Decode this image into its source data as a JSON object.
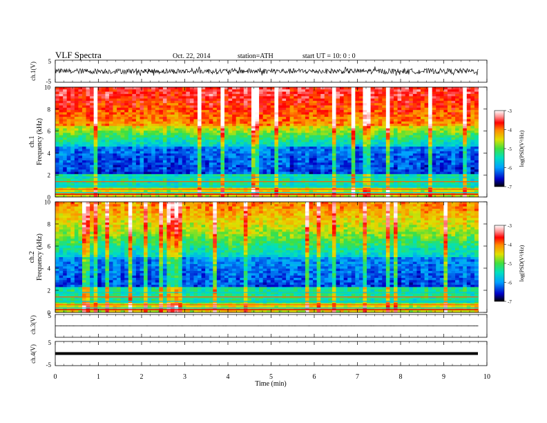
{
  "header": {
    "title": "VLF  Spectra",
    "date": "Oct. 22, 2014",
    "station": "station=ATH",
    "start": "start  UT  =   10: 0  : 0"
  },
  "colorbar": {
    "label": "log(PSD(V²/Hz)",
    "ticks": [
      "-3",
      "-4",
      "-5",
      "-6",
      "-7"
    ]
  },
  "chart_data": [
    {
      "type": "line",
      "name": "ch1-waveform",
      "ylabel": "ch.1(V)",
      "ylim": [
        -5,
        5
      ],
      "yticks": [
        "5",
        "-5"
      ],
      "xlim": [
        0,
        10
      ],
      "envelope_v": [
        -1.2,
        1.2
      ],
      "color": "#000000"
    },
    {
      "type": "heatmap",
      "name": "ch1-spectrogram",
      "ylabel": "ch.1\nFrequency  (kHz)",
      "ylabel_line1": "ch.1",
      "ylabel_line2": "Frequency  (kHz)",
      "ylim": [
        0,
        10
      ],
      "yticks": [
        "0",
        "2",
        "4",
        "6",
        "8",
        "10"
      ],
      "xlim": [
        0,
        9.8
      ],
      "zlim": [
        -7,
        -3
      ],
      "zlabel": "log(PSD(V²/Hz)"
    },
    {
      "type": "heatmap",
      "name": "ch2-spectrogram",
      "ylabel_line1": "ch.2",
      "ylabel_line2": "Frequency  (kHz)",
      "ylim": [
        0,
        10
      ],
      "yticks": [
        "0",
        "2",
        "4",
        "6",
        "8",
        "10"
      ],
      "xlim": [
        0,
        9.8
      ],
      "zlim": [
        -7,
        -3
      ],
      "zlabel": "log(PSD(V²/Hz)"
    },
    {
      "type": "line",
      "name": "ch3-waveform",
      "ylabel": "ch.3(V)",
      "ylim": [
        -5,
        5
      ],
      "yticks": [
        "5"
      ],
      "baseline_v": 0,
      "color": "#000000"
    },
    {
      "type": "line",
      "name": "ch4-waveform",
      "ylabel": "ch.4(V)",
      "ylim": [
        -5,
        5
      ],
      "yticks": [
        "5",
        "-5"
      ],
      "baseline_v": 0,
      "color": "#000000"
    }
  ],
  "x_axis": {
    "label": "Time  (min)",
    "ticks": [
      "0",
      "1",
      "2",
      "3",
      "4",
      "5",
      "6",
      "7",
      "8",
      "9",
      "10"
    ],
    "range": [
      0,
      10
    ]
  }
}
